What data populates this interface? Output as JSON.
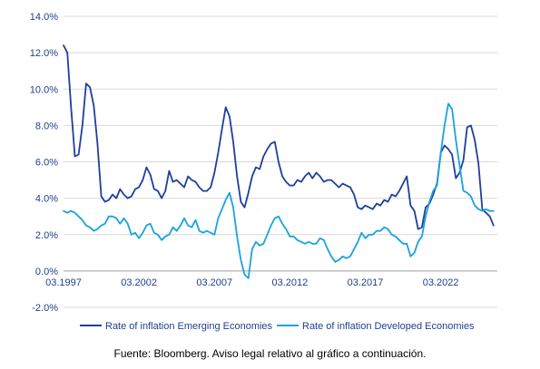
{
  "chart_data": {
    "type": "line",
    "ylim": [
      -2.0,
      14.0
    ],
    "xlim": [
      1997.0,
      2025.75
    ],
    "y_ticks": [
      -2,
      0,
      2,
      4,
      6,
      8,
      10,
      12,
      14
    ],
    "y_tick_labels": [
      "-2.0%",
      "0.0%",
      "2.0%",
      "4.0%",
      "6.0%",
      "8.0%",
      "10.0%",
      "12.0%",
      "14.0%"
    ],
    "x_ticks": [
      1997,
      2002,
      2007,
      2012,
      2017,
      2022
    ],
    "x_tick_labels": [
      "03.1997",
      "03.2002",
      "03.2007",
      "03.2012",
      "03.2017",
      "03.2022"
    ],
    "grid": "horizontal",
    "legend_position": "bottom",
    "series": [
      {
        "name": "Rate of inflation Emerging Economies",
        "color": "#1d3f9e",
        "x": [
          1997.0,
          1997.25,
          1997.5,
          1997.75,
          1998.0,
          1998.25,
          1998.5,
          1998.75,
          1999.0,
          1999.25,
          1999.5,
          1999.75,
          2000.0,
          2000.25,
          2000.5,
          2000.75,
          2001.0,
          2001.25,
          2001.5,
          2001.75,
          2002.0,
          2002.25,
          2002.5,
          2002.75,
          2003.0,
          2003.25,
          2003.5,
          2003.75,
          2004.0,
          2004.25,
          2004.5,
          2004.75,
          2005.0,
          2005.25,
          2005.5,
          2005.75,
          2006.0,
          2006.25,
          2006.5,
          2006.75,
          2007.0,
          2007.25,
          2007.5,
          2007.75,
          2008.0,
          2008.25,
          2008.5,
          2008.75,
          2009.0,
          2009.25,
          2009.5,
          2009.75,
          2010.0,
          2010.25,
          2010.5,
          2010.75,
          2011.0,
          2011.25,
          2011.5,
          2011.75,
          2012.0,
          2012.25,
          2012.5,
          2012.75,
          2013.0,
          2013.25,
          2013.5,
          2013.75,
          2014.0,
          2014.25,
          2014.5,
          2014.75,
          2015.0,
          2015.25,
          2015.5,
          2015.75,
          2016.0,
          2016.25,
          2016.5,
          2016.75,
          2017.0,
          2017.25,
          2017.5,
          2017.75,
          2018.0,
          2018.25,
          2018.5,
          2018.75,
          2019.0,
          2019.25,
          2019.5,
          2019.75,
          2020.0,
          2020.25,
          2020.5,
          2020.75,
          2021.0,
          2021.25,
          2021.5,
          2021.75,
          2022.0,
          2022.25,
          2022.5,
          2022.75,
          2023.0,
          2023.25,
          2023.5,
          2023.75,
          2024.0,
          2024.25,
          2024.5,
          2024.75,
          2025.0,
          2025.25,
          2025.5
        ],
        "values": [
          12.4,
          12.0,
          9.0,
          6.3,
          6.4,
          8.0,
          10.3,
          10.1,
          9.1,
          7.0,
          4.1,
          3.8,
          3.9,
          4.2,
          4.0,
          4.5,
          4.2,
          4.0,
          4.1,
          4.5,
          4.6,
          5.0,
          5.7,
          5.3,
          4.5,
          4.4,
          4.0,
          4.4,
          5.5,
          4.9,
          5.0,
          4.8,
          4.6,
          5.2,
          5.0,
          4.9,
          4.6,
          4.4,
          4.4,
          4.6,
          5.4,
          6.5,
          7.8,
          9.0,
          8.5,
          7.1,
          5.2,
          3.8,
          3.5,
          4.3,
          5.2,
          5.7,
          5.6,
          6.3,
          6.7,
          7.0,
          7.1,
          6.0,
          5.2,
          4.9,
          4.7,
          4.7,
          5.0,
          4.9,
          5.2,
          5.4,
          5.1,
          5.4,
          5.2,
          4.9,
          5.0,
          5.0,
          4.8,
          4.6,
          4.8,
          4.7,
          4.6,
          4.2,
          3.5,
          3.4,
          3.6,
          3.5,
          3.4,
          3.7,
          3.6,
          3.9,
          3.8,
          4.2,
          4.1,
          4.4,
          4.8,
          5.2,
          3.6,
          3.3,
          2.3,
          2.4,
          3.5,
          3.7,
          4.2,
          4.8,
          6.5,
          6.9,
          6.7,
          6.4,
          5.1,
          5.4,
          6.1,
          7.9,
          8.0,
          7.2,
          5.9,
          3.4,
          3.2,
          3.0,
          2.5
        ]
      },
      {
        "name": "Rate of inflation Developed Economies",
        "color": "#1aa3df",
        "x": [
          1997.0,
          1997.25,
          1997.5,
          1997.75,
          1998.0,
          1998.25,
          1998.5,
          1998.75,
          1999.0,
          1999.25,
          1999.5,
          1999.75,
          2000.0,
          2000.25,
          2000.5,
          2000.75,
          2001.0,
          2001.25,
          2001.5,
          2001.75,
          2002.0,
          2002.25,
          2002.5,
          2002.75,
          2003.0,
          2003.25,
          2003.5,
          2003.75,
          2004.0,
          2004.25,
          2004.5,
          2004.75,
          2005.0,
          2005.25,
          2005.5,
          2005.75,
          2006.0,
          2006.25,
          2006.5,
          2006.75,
          2007.0,
          2007.25,
          2007.5,
          2007.75,
          2008.0,
          2008.25,
          2008.5,
          2008.75,
          2009.0,
          2009.25,
          2009.5,
          2009.75,
          2010.0,
          2010.25,
          2010.5,
          2010.75,
          2011.0,
          2011.25,
          2011.5,
          2011.75,
          2012.0,
          2012.25,
          2012.5,
          2012.75,
          2013.0,
          2013.25,
          2013.5,
          2013.75,
          2014.0,
          2014.25,
          2014.5,
          2014.75,
          2015.0,
          2015.25,
          2015.5,
          2015.75,
          2016.0,
          2016.25,
          2016.5,
          2016.75,
          2017.0,
          2017.25,
          2017.5,
          2017.75,
          2018.0,
          2018.25,
          2018.5,
          2018.75,
          2019.0,
          2019.25,
          2019.5,
          2019.75,
          2020.0,
          2020.25,
          2020.5,
          2020.75,
          2021.0,
          2021.25,
          2021.5,
          2021.75,
          2022.0,
          2022.25,
          2022.5,
          2022.75,
          2023.0,
          2023.25,
          2023.5,
          2023.75,
          2024.0,
          2024.25,
          2024.5,
          2024.75,
          2025.0,
          2025.25,
          2025.5
        ],
        "values": [
          3.3,
          3.2,
          3.3,
          3.2,
          3.0,
          2.8,
          2.5,
          2.4,
          2.2,
          2.3,
          2.5,
          2.6,
          3.0,
          3.0,
          2.9,
          2.6,
          2.9,
          2.6,
          2.0,
          2.1,
          1.8,
          2.1,
          2.5,
          2.6,
          2.1,
          2.0,
          1.7,
          1.9,
          2.0,
          2.4,
          2.2,
          2.5,
          2.9,
          2.5,
          2.4,
          2.8,
          2.2,
          2.1,
          2.2,
          2.1,
          2.0,
          2.9,
          3.4,
          3.9,
          4.3,
          3.5,
          1.9,
          0.6,
          -0.2,
          -0.4,
          1.2,
          1.6,
          1.4,
          1.5,
          2.0,
          2.5,
          2.9,
          3.0,
          2.6,
          2.3,
          1.9,
          1.9,
          1.7,
          1.6,
          1.5,
          1.6,
          1.5,
          1.5,
          1.8,
          1.7,
          1.2,
          0.8,
          0.5,
          0.6,
          0.8,
          0.7,
          0.8,
          1.2,
          1.6,
          2.1,
          1.8,
          2.0,
          2.0,
          2.2,
          2.2,
          2.4,
          2.3,
          2.0,
          1.9,
          1.7,
          1.5,
          1.5,
          0.8,
          1.0,
          1.6,
          1.9,
          3.0,
          3.8,
          4.4,
          4.7,
          6.5,
          8.0,
          9.2,
          8.9,
          7.2,
          5.8,
          4.4,
          4.3,
          4.1,
          3.6,
          3.4,
          3.3,
          3.4,
          3.3,
          3.3
        ]
      }
    ]
  },
  "source_note": "Fuente: Bloomberg. Aviso legal relativo al gráfico a continuación."
}
